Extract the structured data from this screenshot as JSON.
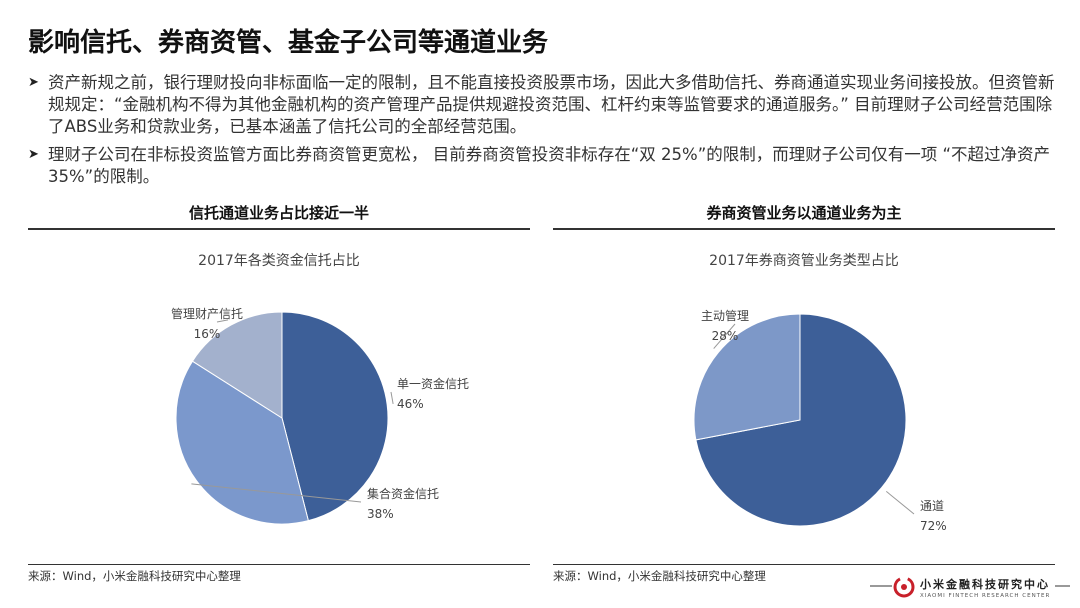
{
  "title": "影响信托、券商资管、基金子公司等通道业务",
  "bullets": [
    "资产新规之前，银行理财投向非标面临一定的限制，且不能直接投资股票市场，因此大多借助信托、券商通道实现业务间接投放。但资管新规规定：“金融机构不得为其他金融机构的资产管理产品提供规避投资范围、杠杆约束等监管要求的通道服务。” 目前理财子公司经营范围除了ABS业务和贷款业务，已基本涵盖了信托公司的全部经营范围。",
    "理财子公司在非标投资监管方面比券商资管更宽松， 目前券商资管投资非标存在“双 25%”的限制，而理财子公司仅有一项 “不超过净资产 35%”的限制。"
  ],
  "panels": [
    {
      "heading": "信托通道业务占比接近一半",
      "source": "来源：Wind，小米金融科技研究中心整理"
    },
    {
      "heading": "券商资管业务以通道业务为主",
      "source": "来源：Wind，小米金融科技研究中心整理"
    }
  ],
  "logo": {
    "cn": "小米金融科技研究中心",
    "en": "XIAOMI FINTECH RESEARCH CENTER"
  },
  "chart_data": [
    {
      "type": "pie",
      "title": "2017年各类资金信托占比",
      "labels": [
        "单一资金信托",
        "集合资金信托",
        "管理财产信托"
      ],
      "values": [
        46,
        38,
        16
      ],
      "value_labels": [
        "46%",
        "38%",
        "16%"
      ],
      "colors": [
        "#3d5f98",
        "#7b98cc",
        "#a3b1cd"
      ]
    },
    {
      "type": "pie",
      "title": "2017年券商资管业务类型占比",
      "labels": [
        "通道",
        "主动管理"
      ],
      "values": [
        72,
        28
      ],
      "value_labels": [
        "72%",
        "28%"
      ],
      "colors": [
        "#3d5f98",
        "#7d98c8"
      ]
    }
  ]
}
